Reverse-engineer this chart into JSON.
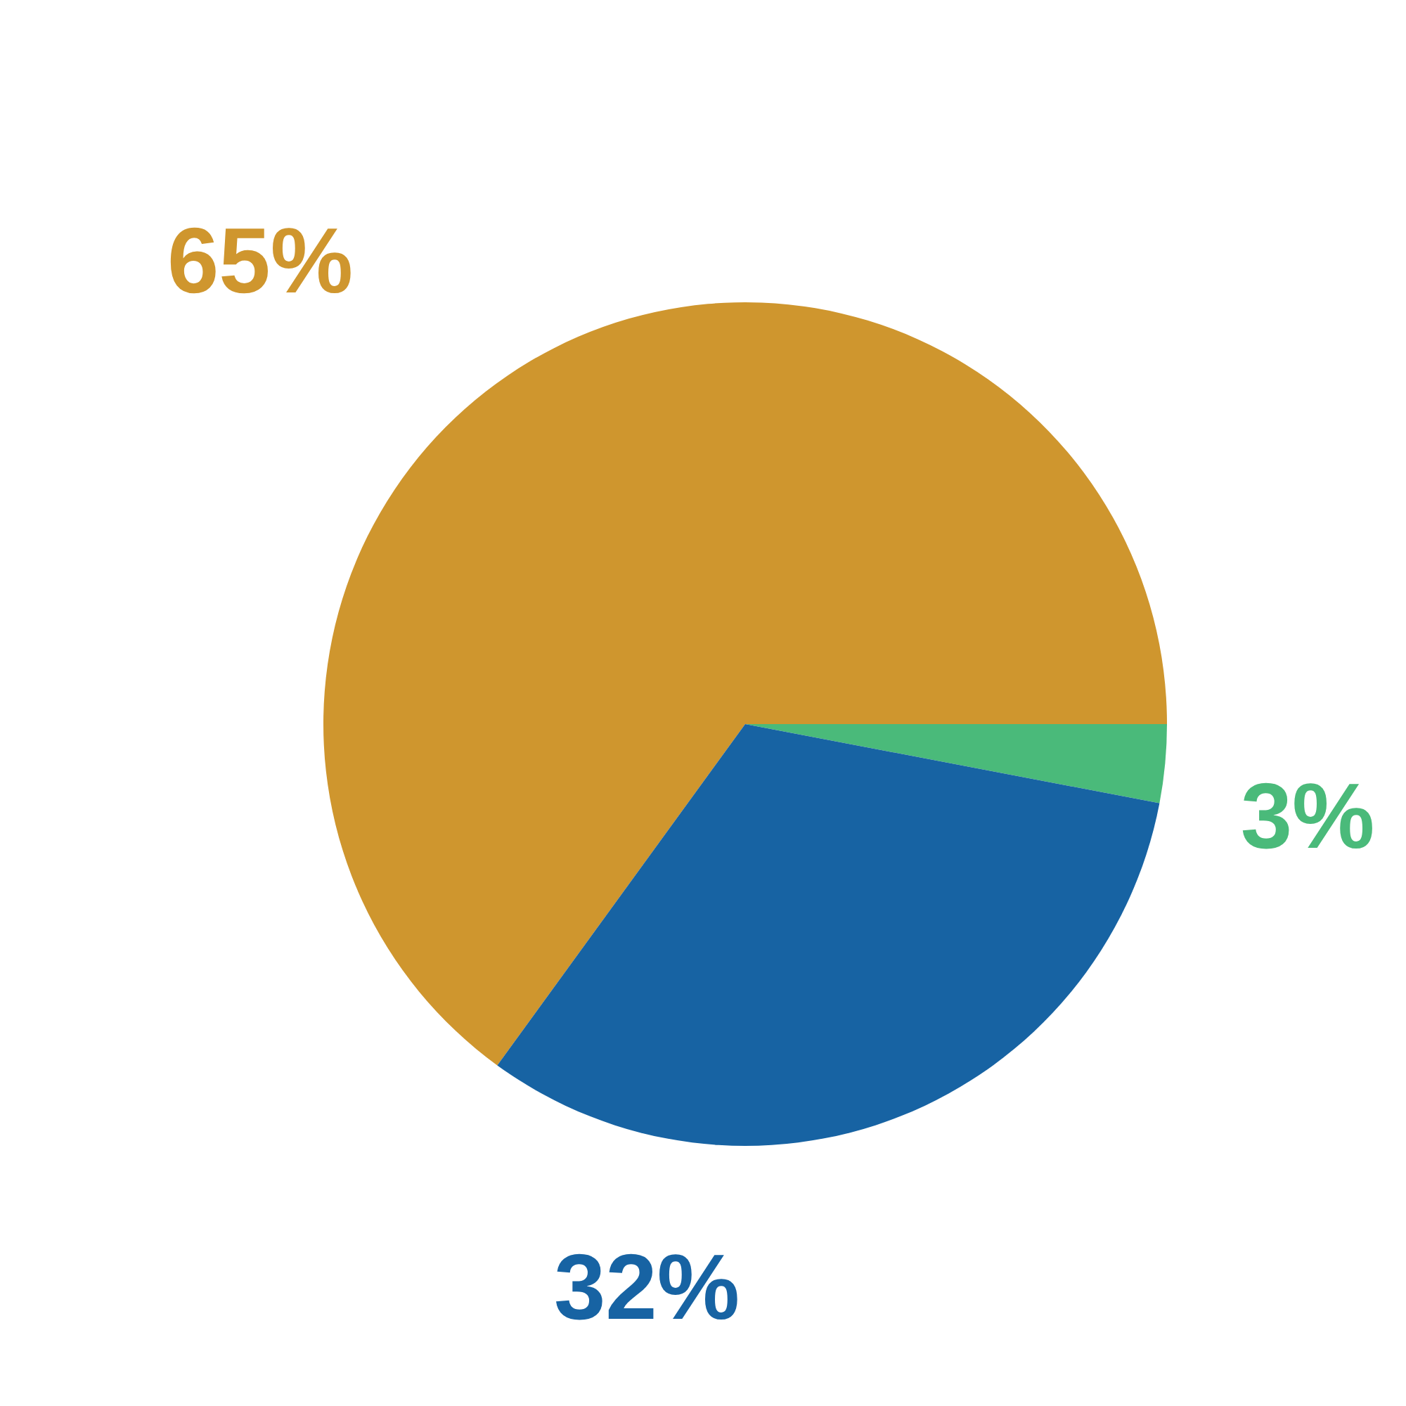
{
  "chart_data": {
    "type": "pie",
    "categories": [
      null,
      null,
      null
    ],
    "values": [
      65,
      3,
      32
    ],
    "colors": [
      "#cf962e",
      "#4aba7a",
      "#1763a3"
    ],
    "value_labels": [
      "65%",
      "3%",
      "32%"
    ]
  }
}
